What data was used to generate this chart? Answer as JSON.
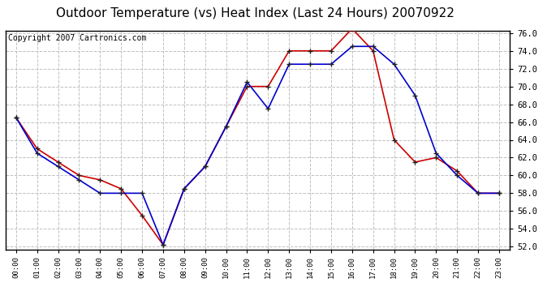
{
  "title": "Outdoor Temperature (vs) Heat Index (Last 24 Hours) 20070922",
  "copyright_text": "Copyright 2007 Cartronics.com",
  "hours": [
    "00:00",
    "01:00",
    "02:00",
    "03:00",
    "04:00",
    "05:00",
    "06:00",
    "07:00",
    "08:00",
    "09:00",
    "10:00",
    "11:00",
    "12:00",
    "13:00",
    "14:00",
    "15:00",
    "16:00",
    "17:00",
    "18:00",
    "19:00",
    "20:00",
    "21:00",
    "22:00",
    "23:00"
  ],
  "temp": [
    66.5,
    62.5,
    61.0,
    59.5,
    58.0,
    58.0,
    58.0,
    52.2,
    58.5,
    61.0,
    65.5,
    70.5,
    67.5,
    72.5,
    72.5,
    72.5,
    74.5,
    74.5,
    72.5,
    69.0,
    62.5,
    60.0,
    58.0,
    58.0
  ],
  "heat_index": [
    66.5,
    63.0,
    61.5,
    60.0,
    59.5,
    58.5,
    55.5,
    52.2,
    58.5,
    61.0,
    65.5,
    70.0,
    70.0,
    74.0,
    74.0,
    74.0,
    76.5,
    74.0,
    64.0,
    61.5,
    62.0,
    60.5,
    58.0,
    58.0
  ],
  "temp_color": "#0000cc",
  "heat_index_color": "#cc0000",
  "ylim_min": 52.0,
  "ylim_max": 76.0,
  "ytick_step": 2.0,
  "bg_color": "#ffffff",
  "grid_color": "#c0c0c0",
  "title_fontsize": 11,
  "copyright_fontsize": 7
}
